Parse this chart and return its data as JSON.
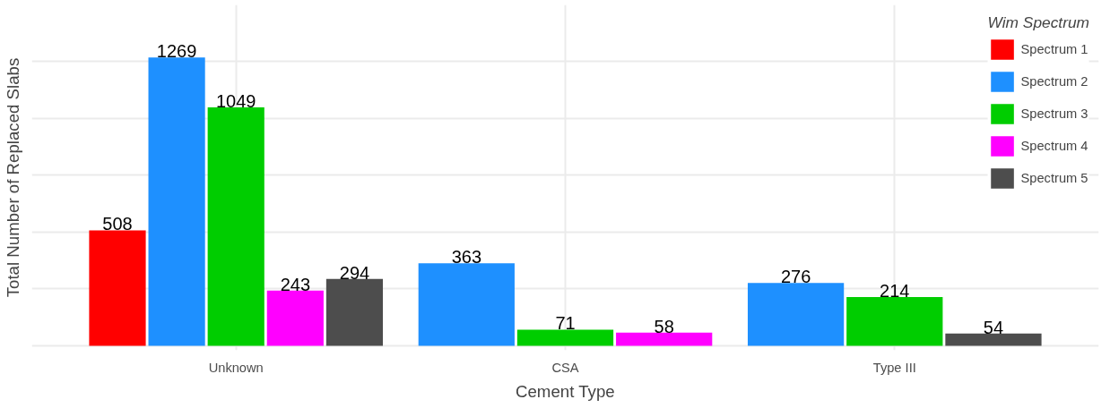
{
  "chart_data": {
    "type": "bar",
    "xlabel": "Cement Type",
    "ylabel": "Total Number of Replaced Slabs",
    "legend_title": "Wim Spectrum",
    "categories": [
      "Unknown",
      "CSA",
      "Type III"
    ],
    "series": [
      {
        "name": "Spectrum 1",
        "color": "#ff0000",
        "values": [
          508,
          null,
          null
        ]
      },
      {
        "name": "Spectrum 2",
        "color": "#1e90ff",
        "values": [
          1269,
          363,
          276
        ]
      },
      {
        "name": "Spectrum 3",
        "color": "#00cd00",
        "values": [
          1049,
          71,
          214
        ]
      },
      {
        "name": "Spectrum 4",
        "color": "#ff00ff",
        "values": [
          243,
          58,
          null
        ]
      },
      {
        "name": "Spectrum 5",
        "color": "#4d4d4d",
        "values": [
          294,
          null,
          54
        ]
      }
    ],
    "ylim": [
      -20,
      1500
    ],
    "yticks": [
      {
        "value": 0,
        "label": null
      },
      {
        "value": 250,
        "label": null
      },
      {
        "value": 500,
        "label": null
      },
      {
        "value": 750,
        "label": null
      },
      {
        "value": 1000,
        "label": null
      },
      {
        "value": 1250,
        "label": null
      }
    ],
    "tick_labels": "x",
    "grid": true,
    "legend": "top right",
    "data_labels": true
  }
}
